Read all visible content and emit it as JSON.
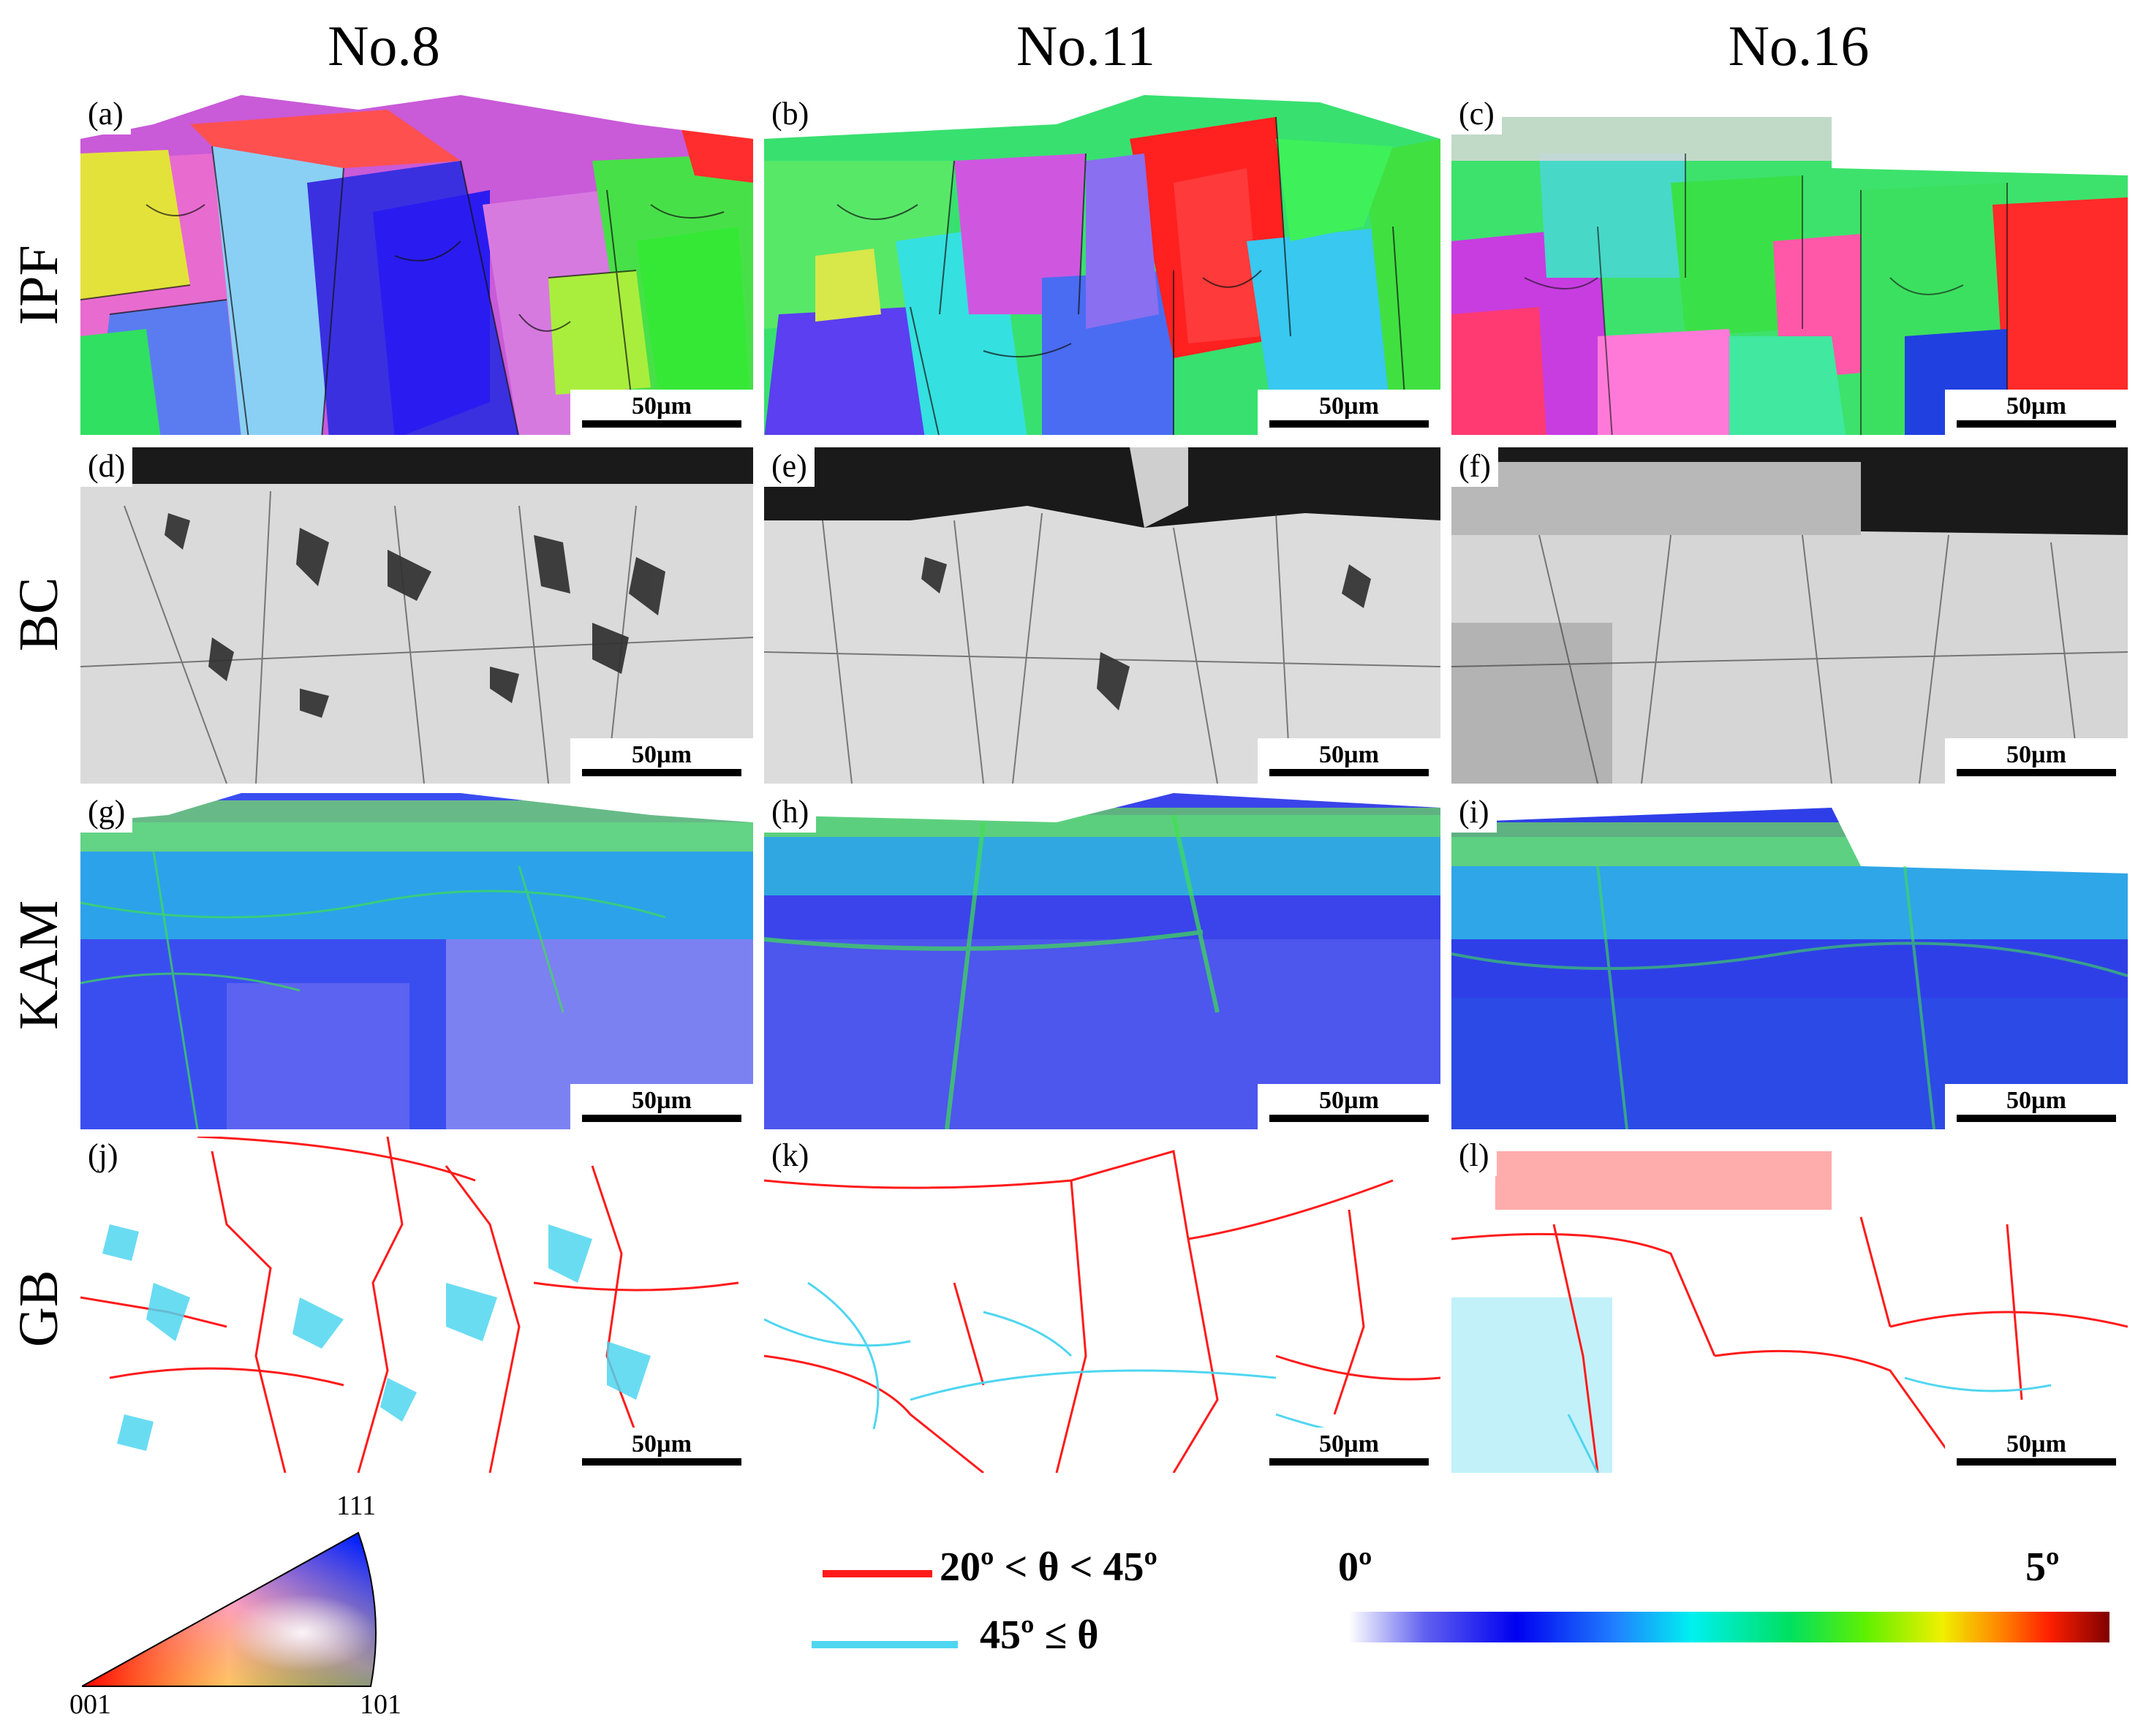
{
  "columns": [
    "No.8",
    "No.11",
    "No.16"
  ],
  "rows": [
    "IPF",
    "BC",
    "KAM",
    "GB"
  ],
  "panel_labels": [
    "(a)",
    "(b)",
    "(c)",
    "(d)",
    "(e)",
    "(f)",
    "(g)",
    "(h)",
    "(i)",
    "(j)",
    "(k)",
    "(l)"
  ],
  "scale_bar": "50µm",
  "ipf_legend": {
    "top": "111",
    "left": "001",
    "right": "101"
  },
  "gb_legend": [
    {
      "label": "20º < θ < 45º",
      "color": "#ff1a1a"
    },
    {
      "label": "45º ≤ θ",
      "color": "#4fd6f0"
    }
  ],
  "kam_colorbar": {
    "min": "0º",
    "max": "5º"
  }
}
